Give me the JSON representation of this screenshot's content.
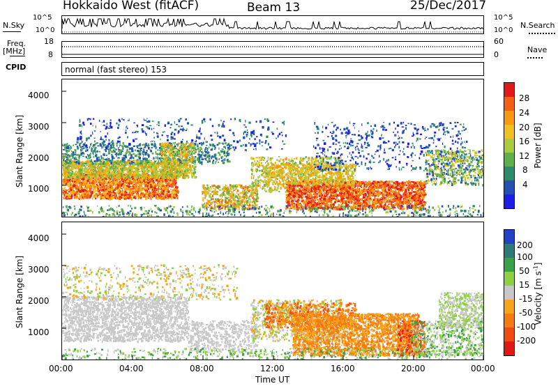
{
  "header": {
    "title": "Hokkaido West (fitACF)",
    "beam": "Beam 13",
    "date": "25/Dec/2017"
  },
  "strips": {
    "nsky_label": "N.Sky",
    "nsky_ticks": [
      "10^5",
      "10^0"
    ],
    "nsearch_label": "N.Search",
    "nsearch_ticks": [
      "10^5",
      "10^0"
    ],
    "freq_label_1": "Freq.",
    "freq_label_2": "[MHz]",
    "freq_ticks": [
      "18",
      "8"
    ],
    "nave_label": "Nave",
    "nave_ticks": [
      "60",
      "0"
    ],
    "cpid_label": "CPID",
    "cpid_value": "normal (fast stereo) 153"
  },
  "chart_data": [
    {
      "type": "heatmap",
      "name": "power",
      "ylabel": "Slant Range [km]",
      "yticks": [
        "1000",
        "2000",
        "3000",
        "4000"
      ],
      "ylim": [
        180,
        4600
      ],
      "x_ticks": [
        "00:00",
        "04:00",
        "08:00",
        "12:00",
        "16:00",
        "20:00",
        "00:00"
      ],
      "colorbar": {
        "label": "Power [dB]",
        "ticks": [
          "4",
          "8",
          "12",
          "16",
          "20",
          "24",
          "28"
        ],
        "colors": [
          "#1e1ee6",
          "#2450b4",
          "#2e8a6e",
          "#5fb04a",
          "#a8cc3c",
          "#f0c020",
          "#f79a10",
          "#f26010",
          "#e21a1a"
        ]
      }
    },
    {
      "type": "heatmap",
      "name": "velocity",
      "ylabel": "Slant Range [km]",
      "yticks": [
        "1000",
        "2000",
        "3000",
        "4000"
      ],
      "ylim": [
        180,
        4600
      ],
      "x_ticks": [
        "00:00",
        "04:00",
        "08:00",
        "12:00",
        "16:00",
        "20:00",
        "00:00"
      ],
      "xlabel": "Time UT",
      "colorbar": {
        "label": "Velocity [m s",
        "label_sup": "-1",
        "label_end": "]",
        "ticks": [
          "200",
          "100",
          "50",
          "15",
          "-15",
          "-50",
          "-100",
          "-200"
        ],
        "colors": [
          "#2240c8",
          "#2e7a7a",
          "#3aa246",
          "#8ed040",
          "#c8c8c8",
          "#f6a51a",
          "#f57a12",
          "#ee4c10",
          "#e01818"
        ]
      }
    }
  ]
}
